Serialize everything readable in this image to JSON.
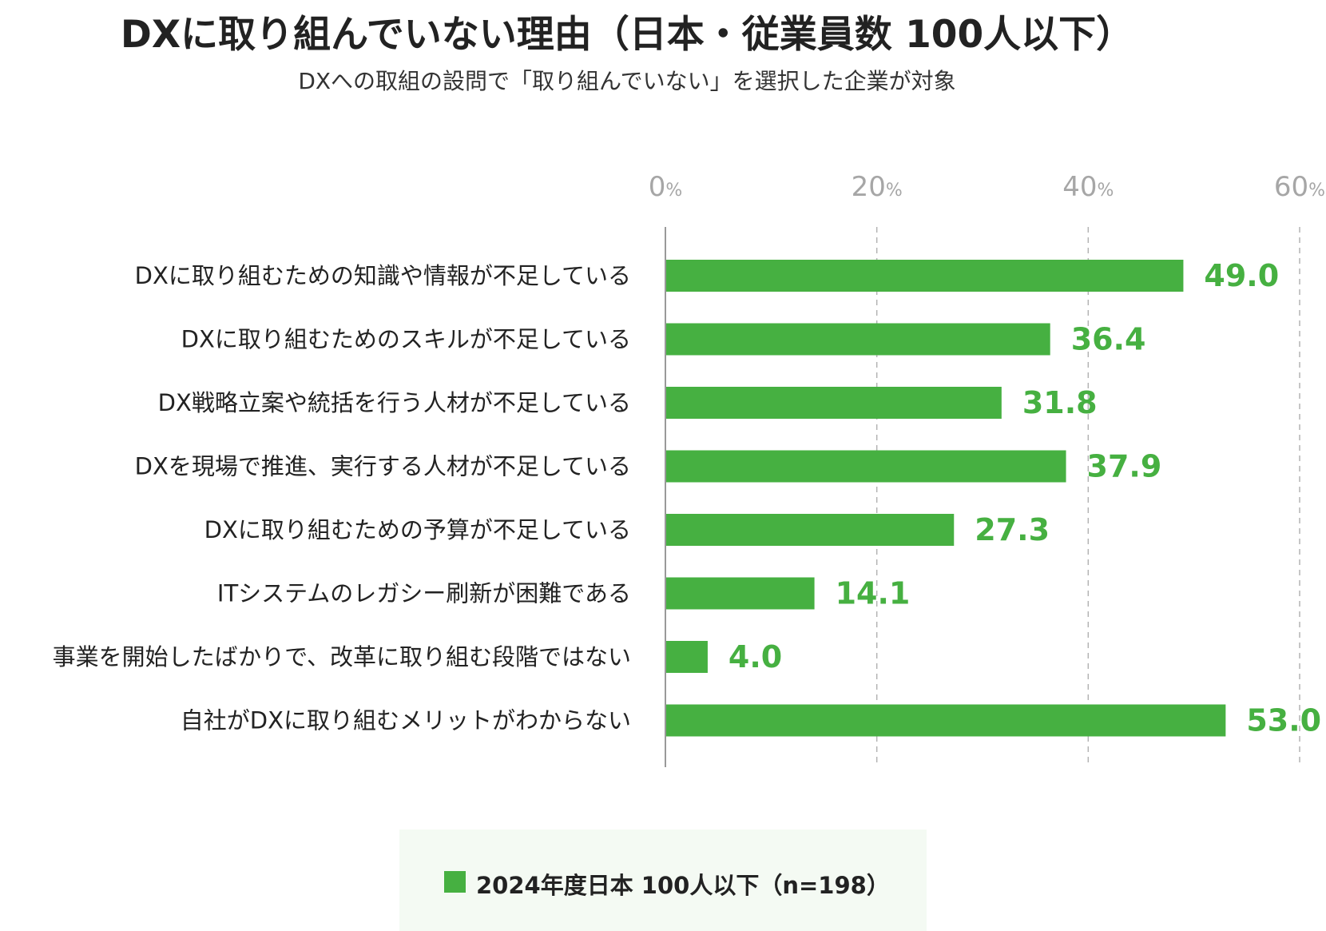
{
  "header": {
    "title": "DXに取り組んでいない理由（日本・従業員数 100人以下）",
    "subtitle": "DXへの取組の設問で「取り組んでいない」を選択した企業が対象"
  },
  "legend": {
    "label": "2024年度日本 100人以下（n=198）"
  },
  "colors": {
    "bar": "#46b041",
    "value_text": "#46b041",
    "axis_tick_text": "#a6a6a6",
    "grid": "#b3b3b3",
    "category_text": "#222222"
  },
  "chart_data": {
    "type": "bar",
    "orientation": "horizontal",
    "title": "DXに取り組んでいない理由（日本・従業員数 100人以下）",
    "subtitle": "DXへの取組の設問で「取り組んでいない」を選択した企業が対象",
    "categories": [
      "DXに取り組むための知識や情報が不足している",
      "DXに取り組むためのスキルが不足している",
      "DX戦略立案や統括を行う人材が不足している",
      "DXを現場で推進、実行する人材が不足している",
      "DXに取り組むための予算が不足している",
      "ITシステムのレガシー刷新が困難である",
      "事業を開始したばかりで、改革に取り組む段階ではない",
      "自社がDXに取り組むメリットがわからない"
    ],
    "series": [
      {
        "name": "2024年度日本 100人以下（n=198）",
        "values": [
          49.0,
          36.4,
          31.8,
          37.9,
          27.3,
          14.1,
          4.0,
          53.0
        ],
        "labels": [
          "49.0",
          "36.4",
          "31.8",
          "37.9",
          "27.3",
          "14.1",
          "4.0",
          "53.0"
        ]
      }
    ],
    "xlim": [
      0,
      60
    ],
    "ticks": [
      {
        "num": "0",
        "unit": "%"
      },
      {
        "num": "20",
        "unit": "%"
      },
      {
        "num": "40",
        "unit": "%"
      },
      {
        "num": "60",
        "unit": "%"
      }
    ],
    "tick_values": [
      0,
      20,
      40,
      60
    ],
    "grid": true,
    "legend_position": "bottom"
  }
}
